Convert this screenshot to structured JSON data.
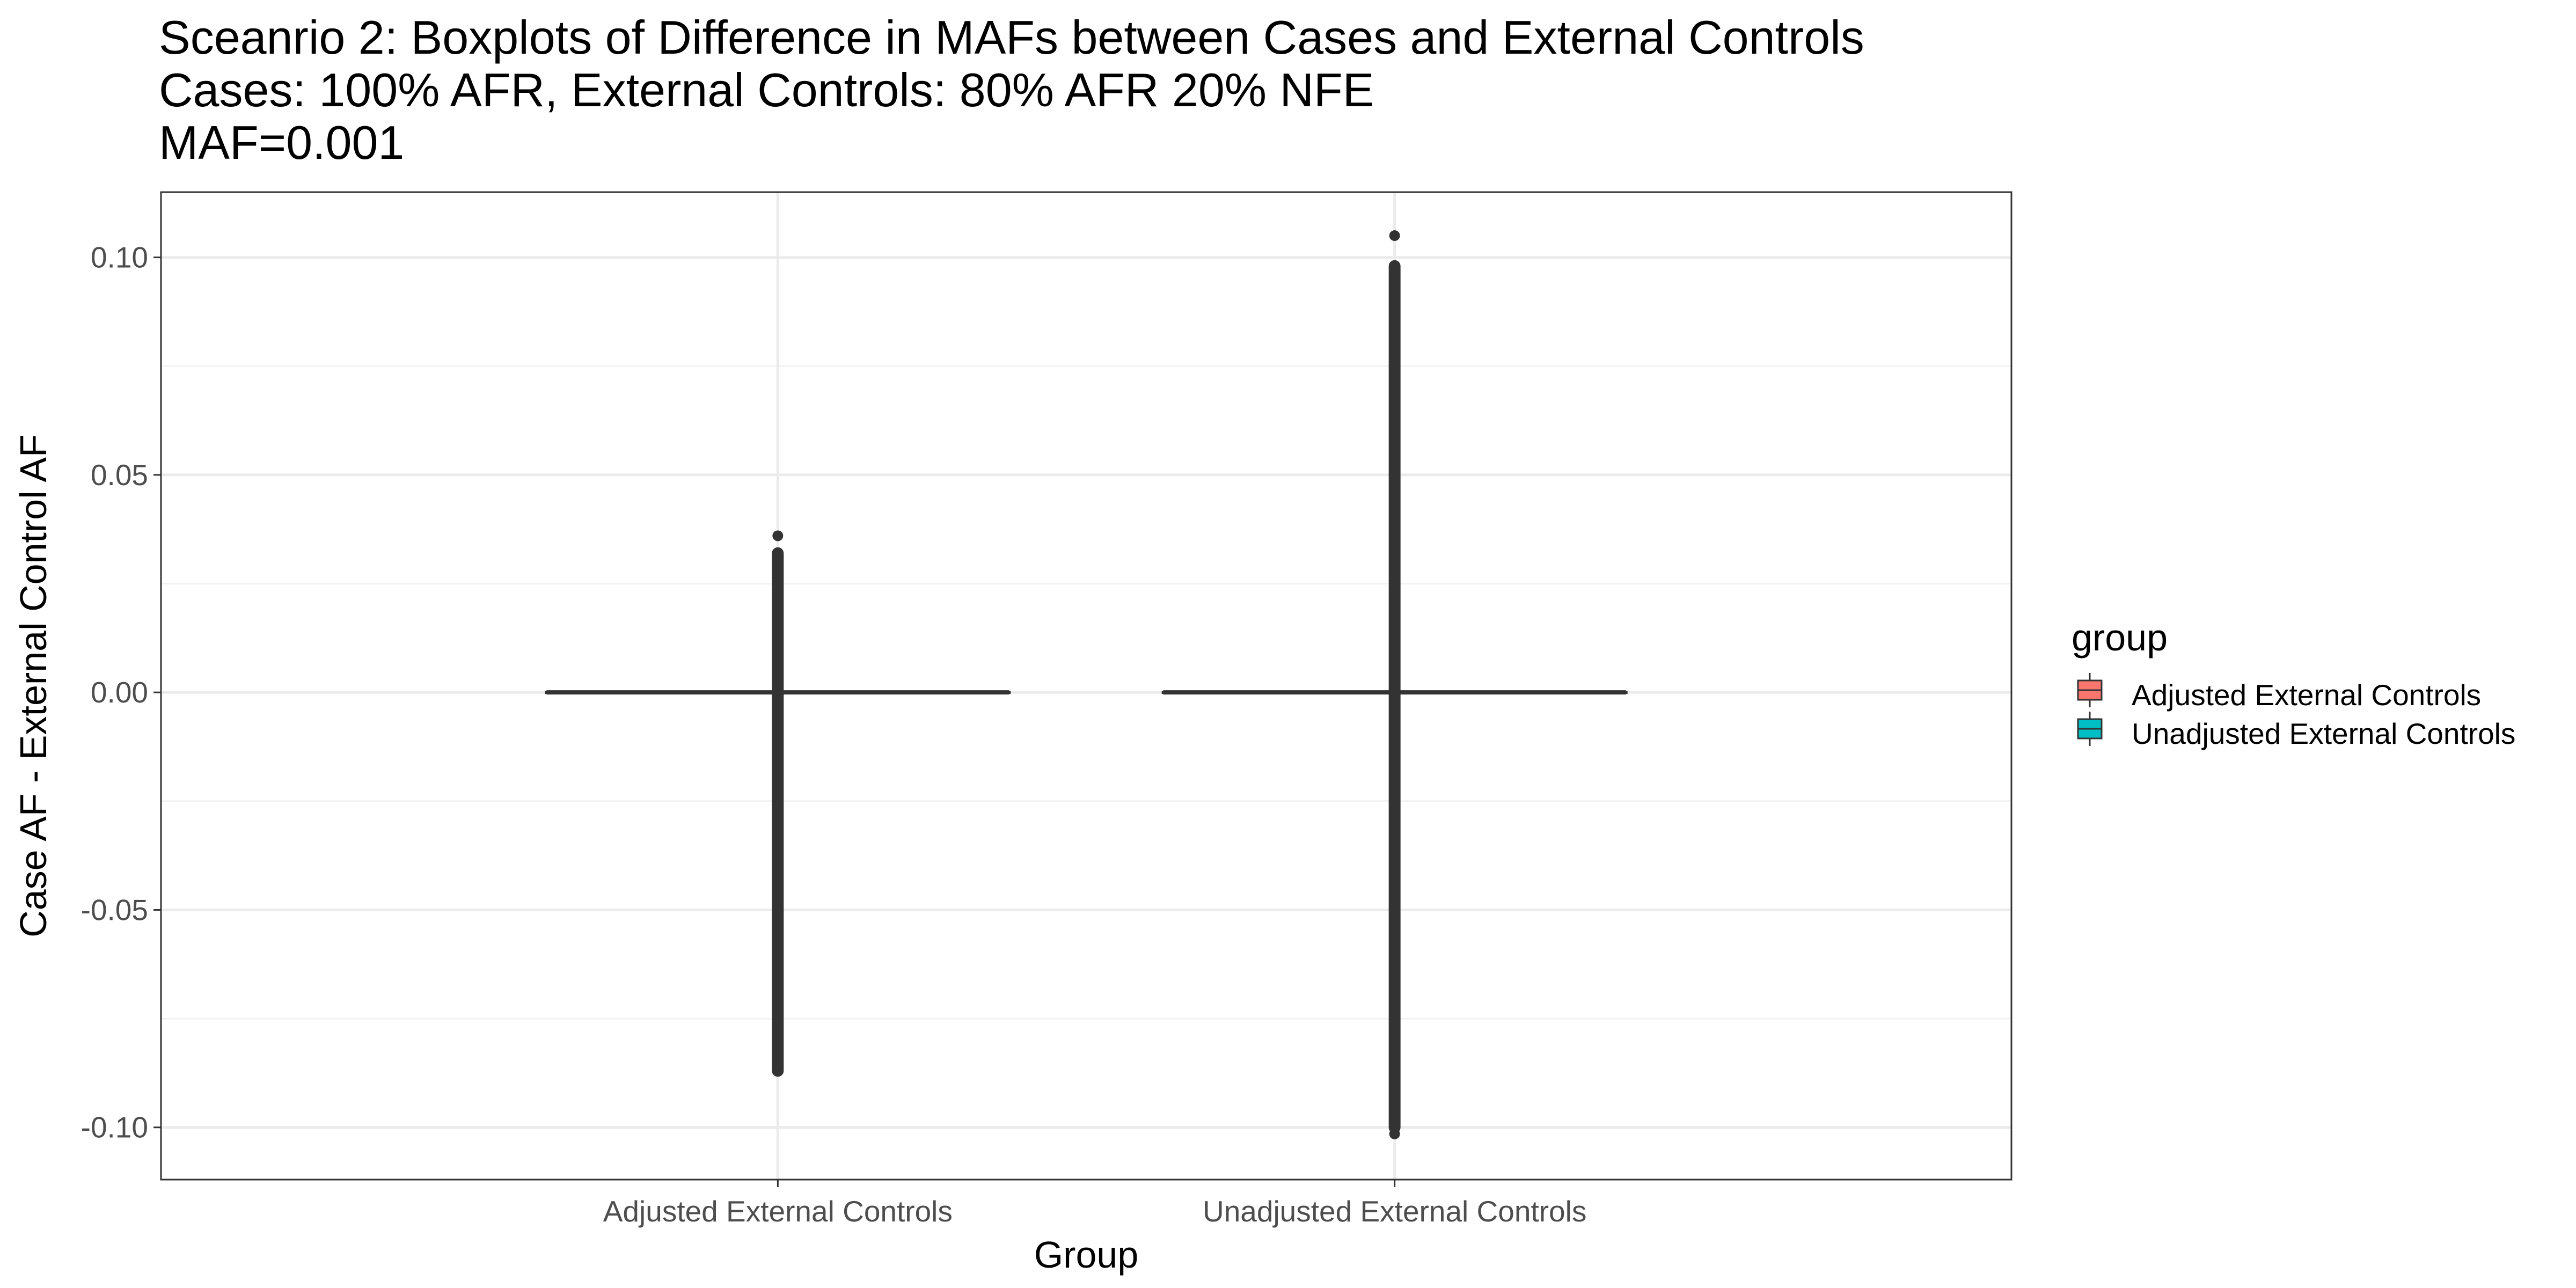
{
  "chart_data": {
    "type": "boxplot",
    "title_lines": [
      "Sceanrio 2: Boxplots of Difference in MAFs between Cases and External Controls",
      "Cases: 100% AFR, External Controls: 80% AFR 20% NFE",
      "MAF=0.001"
    ],
    "xlabel": "Group",
    "ylabel": "Case AF - External Control AF",
    "categories": [
      "Adjusted External Controls",
      "Unadjusted External Controls"
    ],
    "ylim": [
      -0.112,
      0.115
    ],
    "yticks": [
      0.1,
      0.05,
      0.0,
      -0.05,
      -0.1
    ],
    "ytick_labels": [
      "0.10",
      "0.05",
      "0.00",
      "-0.05",
      "-0.10"
    ],
    "grid": true,
    "theme": "bw",
    "legend": {
      "title": "group",
      "position": "right",
      "entries": [
        {
          "label": "Adjusted External Controls",
          "color": "#F8766D"
        },
        {
          "label": "Unadjusted External Controls",
          "color": "#00BFC4"
        }
      ]
    },
    "series": [
      {
        "name": "Adjusted External Controls",
        "color": "#F8766D",
        "median": 0.0,
        "q1": 0.0,
        "q3": 0.0,
        "whisker_low": 0.0,
        "whisker_high": 0.0,
        "outlier_range": [
          -0.087,
          0.032
        ],
        "outlier_extremes": [
          0.036,
          -0.0865
        ]
      },
      {
        "name": "Unadjusted External Controls",
        "color": "#00BFC4",
        "median": 0.0,
        "q1": 0.0,
        "q3": 0.0,
        "whisker_low": 0.0,
        "whisker_high": 0.0,
        "outlier_range": [
          -0.1,
          0.098
        ],
        "outlier_extremes": [
          0.105,
          -0.1015
        ]
      }
    ]
  }
}
